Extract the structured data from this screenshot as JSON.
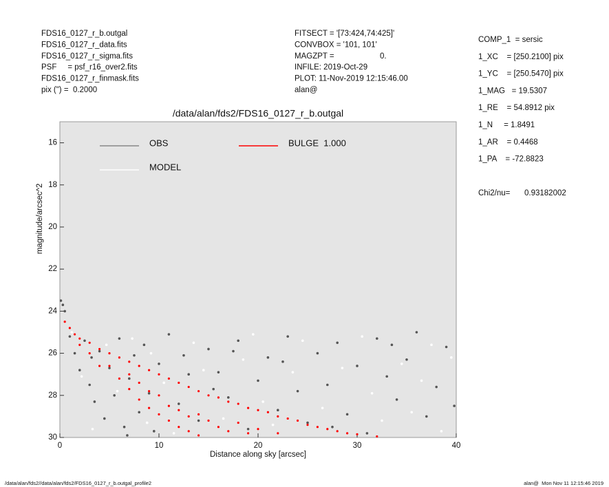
{
  "header": {
    "left": [
      "FDS16_0127_r_b.outgal",
      "FDS16_0127_r_data.fits",
      "FDS16_0127_r_sigma.fits",
      "PSF     = psf_r16_over2.fits",
      "FDS16_0127_r_finmask.fits",
      "pix (\") =  0.2000"
    ],
    "middle": [
      "FITSECT = '[73:424,74:425]'",
      "CONVBOX = '101, 101'",
      "MAGZPT =",
      "INFILE: 2019-Oct-29",
      "PLOT: 11-Nov-2019 12:15:46.00",
      "alan@"
    ],
    "magzpt_value": "0.",
    "right": [
      "COMP_1  = sersic",
      "1_XC    = [250.2100] pix",
      "1_YC    = [250.5470] pix",
      "1_MAG   = 19.5307",
      "1_RE    = 54.8912 pix",
      "1_N     = 1.8491",
      "1_AR    = 0.4468",
      "1_PA    = -72.8823"
    ],
    "chi2_label": "Chi2/nu=",
    "chi2_value": "0.93182002"
  },
  "footer": {
    "left": "/data/alan/fds2//data/alan/fds2/FDS16_0127_r_b.outgal_profile2",
    "right": "alan@  Mon Nov 11 12:15:46 2019"
  },
  "chart_data": {
    "type": "scatter",
    "title": "/data/alan/fds2/FDS16_0127_r_b.outgal",
    "x_label": "Distance along sky [arcsec]",
    "y_label": "magnitude/arcsec^2",
    "xlim": [
      0,
      40
    ],
    "xticks": [
      0,
      10,
      20,
      30,
      40
    ],
    "ylim": [
      15,
      30
    ],
    "yticks": [
      16,
      18,
      20,
      22,
      24,
      26,
      28,
      30
    ],
    "y_inverted": true,
    "background": "#e5e5e5",
    "series": [
      {
        "name": "OBS",
        "color": "#555555",
        "x": [
          0.1,
          0.3,
          0.5,
          1.0,
          1.5,
          2.0,
          2.5,
          3.0,
          3.5,
          4.0,
          4.5,
          5.0,
          5.5,
          6.0,
          6.5,
          7.0,
          7.5,
          8.0,
          8.5,
          9.0,
          9.5,
          10,
          11,
          12,
          13,
          14,
          15,
          16,
          17,
          18,
          19,
          20,
          21,
          22,
          23,
          24,
          25,
          26,
          27,
          28,
          29,
          30,
          31,
          32,
          33,
          34,
          35,
          36,
          37,
          38,
          39,
          39.8,
          12.5,
          17.5,
          22.5,
          27.5,
          33.5,
          3.2,
          6.8,
          15.5
        ],
        "values": [
          23.5,
          23.7,
          24.0,
          25.2,
          26.0,
          26.8,
          25.4,
          27.5,
          28.3,
          25.9,
          29.1,
          26.7,
          28.0,
          25.3,
          29.5,
          27.2,
          26.1,
          28.8,
          25.6,
          27.9,
          29.7,
          26.5,
          25.1,
          28.4,
          27.0,
          29.2,
          25.8,
          26.9,
          28.1,
          25.4,
          29.6,
          27.3,
          26.2,
          28.7,
          25.2,
          27.8,
          29.3,
          26.0,
          27.5,
          25.5,
          28.9,
          26.6,
          29.8,
          25.3,
          27.1,
          28.2,
          26.3,
          25.0,
          29.0,
          27.6,
          25.7,
          28.5,
          26.1,
          25.9,
          26.4,
          29.5,
          25.6,
          26.2,
          29.9,
          27.7
        ]
      },
      {
        "name": "MODEL",
        "color": "#ffffff",
        "x": [
          1.2,
          2.2,
          3.3,
          4.7,
          5.8,
          7.3,
          8.8,
          10.5,
          11.5,
          13.5,
          14.5,
          16.5,
          18.5,
          19.5,
          21.5,
          23.5,
          24.5,
          26.5,
          28.5,
          30.5,
          31.5,
          32.5,
          34.5,
          35.5,
          36.5,
          37.5,
          38.5,
          39.5,
          9.2,
          20.5
        ],
        "values": [
          25.0,
          27.1,
          29.6,
          25.6,
          27.8,
          25.3,
          29.3,
          27.4,
          29.8,
          25.5,
          26.8,
          29.1,
          26.3,
          25.1,
          29.4,
          26.9,
          25.4,
          28.6,
          26.7,
          25.2,
          27.9,
          29.2,
          26.5,
          28.8,
          27.3,
          25.6,
          29.7,
          26.2,
          26.0,
          28.3
        ]
      },
      {
        "name": "BULGE  1.000",
        "color": "#ff0000",
        "x": [
          0.5,
          1,
          1.5,
          2,
          2,
          3,
          3,
          4,
          4,
          5,
          5,
          6,
          6,
          7,
          7,
          7,
          8,
          8,
          8,
          9,
          9,
          9,
          10,
          10,
          10,
          11,
          11,
          11,
          12,
          12,
          12,
          13,
          13,
          13,
          14,
          14,
          14,
          15,
          15,
          16,
          16,
          17,
          17,
          18,
          18,
          19,
          19,
          20,
          20,
          21,
          22,
          22,
          23,
          24,
          25,
          26,
          27,
          28,
          29,
          30,
          32
        ],
        "values": [
          24.5,
          24.8,
          25.1,
          25.3,
          25.6,
          25.5,
          26.0,
          25.8,
          26.6,
          26.0,
          26.6,
          26.2,
          27.2,
          26.4,
          27.0,
          27.7,
          26.6,
          27.4,
          28.2,
          26.8,
          27.8,
          28.6,
          27.0,
          28.0,
          28.9,
          27.2,
          28.5,
          29.2,
          27.4,
          28.7,
          29.5,
          27.6,
          29.0,
          29.7,
          27.8,
          28.9,
          29.9,
          28.0,
          29.2,
          28.1,
          29.5,
          28.3,
          29.7,
          28.4,
          29.3,
          28.6,
          29.8,
          28.7,
          29.6,
          28.8,
          29.0,
          29.8,
          29.1,
          29.2,
          29.4,
          29.5,
          29.6,
          29.7,
          29.8,
          29.85,
          29.95
        ]
      }
    ]
  }
}
